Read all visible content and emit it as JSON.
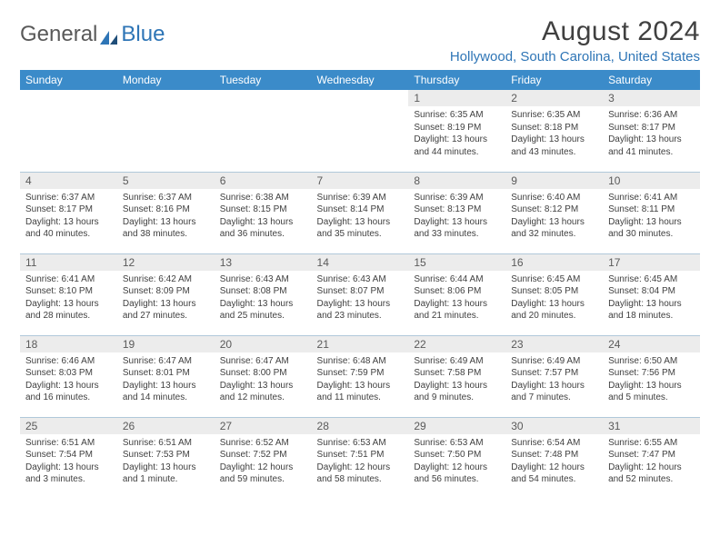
{
  "brand": {
    "name1": "General",
    "name2": "Blue"
  },
  "title": "August 2024",
  "location": "Hollywood, South Carolina, United States",
  "colors": {
    "header_bg": "#3b8bc9",
    "accent": "#2e75b6",
    "daynum_bg": "#ececec",
    "rule": "#b0c8da",
    "text": "#404040"
  },
  "day_headers": [
    "Sunday",
    "Monday",
    "Tuesday",
    "Wednesday",
    "Thursday",
    "Friday",
    "Saturday"
  ],
  "weeks": [
    [
      null,
      null,
      null,
      null,
      {
        "n": "1",
        "sunrise": "6:35 AM",
        "sunset": "8:19 PM",
        "daylight": "13 hours and 44 minutes."
      },
      {
        "n": "2",
        "sunrise": "6:35 AM",
        "sunset": "8:18 PM",
        "daylight": "13 hours and 43 minutes."
      },
      {
        "n": "3",
        "sunrise": "6:36 AM",
        "sunset": "8:17 PM",
        "daylight": "13 hours and 41 minutes."
      }
    ],
    [
      {
        "n": "4",
        "sunrise": "6:37 AM",
        "sunset": "8:17 PM",
        "daylight": "13 hours and 40 minutes."
      },
      {
        "n": "5",
        "sunrise": "6:37 AM",
        "sunset": "8:16 PM",
        "daylight": "13 hours and 38 minutes."
      },
      {
        "n": "6",
        "sunrise": "6:38 AM",
        "sunset": "8:15 PM",
        "daylight": "13 hours and 36 minutes."
      },
      {
        "n": "7",
        "sunrise": "6:39 AM",
        "sunset": "8:14 PM",
        "daylight": "13 hours and 35 minutes."
      },
      {
        "n": "8",
        "sunrise": "6:39 AM",
        "sunset": "8:13 PM",
        "daylight": "13 hours and 33 minutes."
      },
      {
        "n": "9",
        "sunrise": "6:40 AM",
        "sunset": "8:12 PM",
        "daylight": "13 hours and 32 minutes."
      },
      {
        "n": "10",
        "sunrise": "6:41 AM",
        "sunset": "8:11 PM",
        "daylight": "13 hours and 30 minutes."
      }
    ],
    [
      {
        "n": "11",
        "sunrise": "6:41 AM",
        "sunset": "8:10 PM",
        "daylight": "13 hours and 28 minutes."
      },
      {
        "n": "12",
        "sunrise": "6:42 AM",
        "sunset": "8:09 PM",
        "daylight": "13 hours and 27 minutes."
      },
      {
        "n": "13",
        "sunrise": "6:43 AM",
        "sunset": "8:08 PM",
        "daylight": "13 hours and 25 minutes."
      },
      {
        "n": "14",
        "sunrise": "6:43 AM",
        "sunset": "8:07 PM",
        "daylight": "13 hours and 23 minutes."
      },
      {
        "n": "15",
        "sunrise": "6:44 AM",
        "sunset": "8:06 PM",
        "daylight": "13 hours and 21 minutes."
      },
      {
        "n": "16",
        "sunrise": "6:45 AM",
        "sunset": "8:05 PM",
        "daylight": "13 hours and 20 minutes."
      },
      {
        "n": "17",
        "sunrise": "6:45 AM",
        "sunset": "8:04 PM",
        "daylight": "13 hours and 18 minutes."
      }
    ],
    [
      {
        "n": "18",
        "sunrise": "6:46 AM",
        "sunset": "8:03 PM",
        "daylight": "13 hours and 16 minutes."
      },
      {
        "n": "19",
        "sunrise": "6:47 AM",
        "sunset": "8:01 PM",
        "daylight": "13 hours and 14 minutes."
      },
      {
        "n": "20",
        "sunrise": "6:47 AM",
        "sunset": "8:00 PM",
        "daylight": "13 hours and 12 minutes."
      },
      {
        "n": "21",
        "sunrise": "6:48 AM",
        "sunset": "7:59 PM",
        "daylight": "13 hours and 11 minutes."
      },
      {
        "n": "22",
        "sunrise": "6:49 AM",
        "sunset": "7:58 PM",
        "daylight": "13 hours and 9 minutes."
      },
      {
        "n": "23",
        "sunrise": "6:49 AM",
        "sunset": "7:57 PM",
        "daylight": "13 hours and 7 minutes."
      },
      {
        "n": "24",
        "sunrise": "6:50 AM",
        "sunset": "7:56 PM",
        "daylight": "13 hours and 5 minutes."
      }
    ],
    [
      {
        "n": "25",
        "sunrise": "6:51 AM",
        "sunset": "7:54 PM",
        "daylight": "13 hours and 3 minutes."
      },
      {
        "n": "26",
        "sunrise": "6:51 AM",
        "sunset": "7:53 PM",
        "daylight": "13 hours and 1 minute."
      },
      {
        "n": "27",
        "sunrise": "6:52 AM",
        "sunset": "7:52 PM",
        "daylight": "12 hours and 59 minutes."
      },
      {
        "n": "28",
        "sunrise": "6:53 AM",
        "sunset": "7:51 PM",
        "daylight": "12 hours and 58 minutes."
      },
      {
        "n": "29",
        "sunrise": "6:53 AM",
        "sunset": "7:50 PM",
        "daylight": "12 hours and 56 minutes."
      },
      {
        "n": "30",
        "sunrise": "6:54 AM",
        "sunset": "7:48 PM",
        "daylight": "12 hours and 54 minutes."
      },
      {
        "n": "31",
        "sunrise": "6:55 AM",
        "sunset": "7:47 PM",
        "daylight": "12 hours and 52 minutes."
      }
    ]
  ]
}
